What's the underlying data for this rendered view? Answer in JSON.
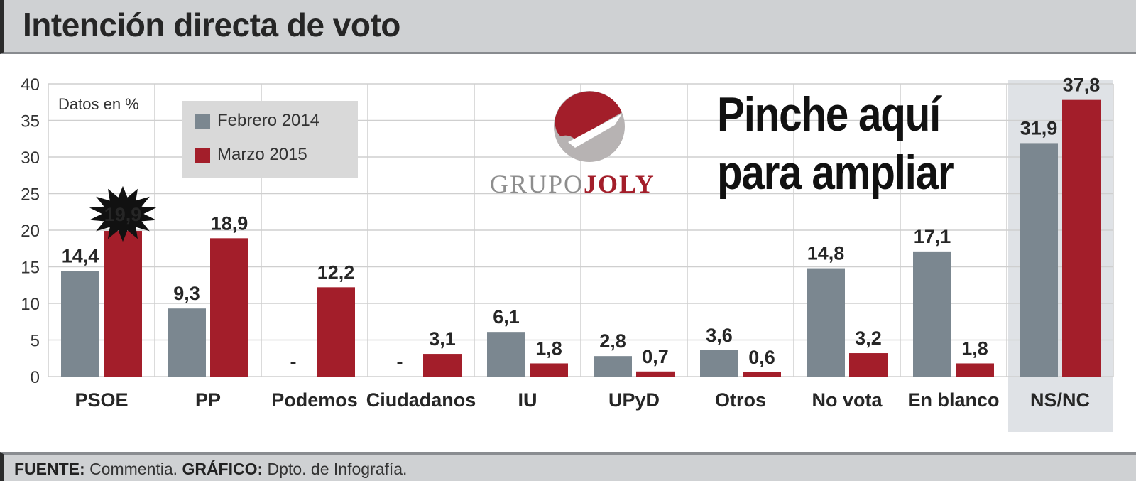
{
  "header": {
    "title": "Intención directa de voto"
  },
  "note": "Datos en %",
  "legend": [
    {
      "label": "Febrero 2014",
      "color": "#7b8790"
    },
    {
      "label": "Marzo 2015",
      "color": "#a31e2a"
    }
  ],
  "overlay": {
    "line1": "Pinche aquí",
    "line2": "para ampliar"
  },
  "logo": {
    "part1": "GRUPO",
    "part2": "JOLY"
  },
  "footer": {
    "source_label": "FUENTE:",
    "source": "Commentia.",
    "graphic_label": "GRÁFICO:",
    "graphic": "Dpto. de Infografía."
  },
  "chart_data": {
    "type": "bar",
    "categories": [
      "PSOE",
      "PP",
      "Podemos",
      "Ciudadanos",
      "IU",
      "UPyD",
      "Otros",
      "No vota",
      "En blanco",
      "NS/NC"
    ],
    "series": [
      {
        "name": "Febrero 2014",
        "values": [
          14.4,
          9.3,
          null,
          null,
          6.1,
          2.8,
          3.6,
          14.8,
          17.1,
          31.9
        ],
        "labels": [
          "14,4",
          "9,3",
          "-",
          "-",
          "6,1",
          "2,8",
          "3,6",
          "14,8",
          "17,1",
          "31,9"
        ]
      },
      {
        "name": "Marzo 2015",
        "values": [
          19.9,
          18.9,
          12.2,
          3.1,
          1.8,
          0.7,
          0.6,
          3.2,
          1.8,
          37.8
        ],
        "labels": [
          "19,9",
          "18,9",
          "12,2",
          "3,1",
          "1,8",
          "0,7",
          "0,6",
          "3,2",
          "1,8",
          "37,8"
        ]
      }
    ],
    "yticks": [
      "0",
      "5",
      "10",
      "15",
      "20",
      "25",
      "30",
      "35",
      "40"
    ],
    "ylim": [
      0,
      40
    ],
    "highlight": {
      "category": "PSOE",
      "series": "Marzo 2015"
    },
    "shaded_category": "NS/NC",
    "grid": true
  }
}
